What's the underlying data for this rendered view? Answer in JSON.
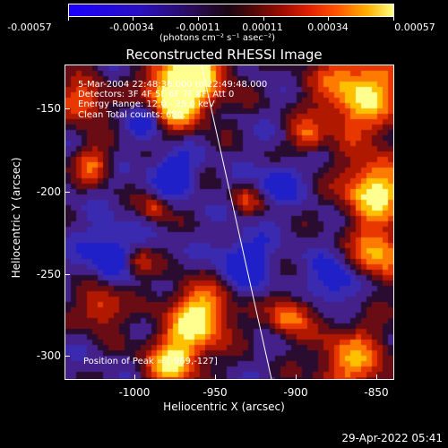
{
  "colorbar": {
    "tick_labels": [
      "-0.00057",
      "-0.00034",
      "-0.00011",
      "0.00011",
      "0.00034",
      "0.00057"
    ],
    "units": "(photons cm⁻² s⁻¹ asec⁻²)"
  },
  "title": "Reconstructed RHESSI Image",
  "info": {
    "line1": "5-Mar-2004 22:48:36.000 to 22:49:48.000",
    "line2": "Detectors: 3F 4F 5F 6F 7F 8F, Att 0",
    "line3": "Energy Range: 12.0 - 25.0 keV",
    "line4": "Clean    Total counts: 680.",
    "peak": "Position of Peak = [-969,-127]"
  },
  "axes": {
    "xlabel": "Heliocentric X (arcsec)",
    "ylabel": "Heliocentric Y (arcsec)",
    "xticks": [
      "-1000",
      "-950",
      "-900",
      "-850"
    ],
    "yticks": [
      "-150",
      "-200",
      "-250",
      "-300"
    ]
  },
  "timestamp": "29-Apr-2022 05:41"
}
